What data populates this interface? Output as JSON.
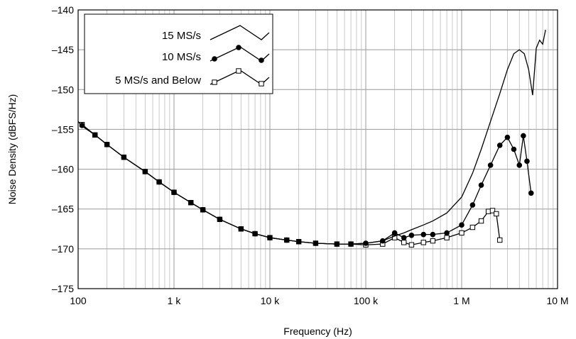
{
  "chart_data": {
    "type": "line",
    "xlabel": "Frequency (Hz)",
    "ylabel": "Noise Density (dBFS/Hz)",
    "x_scale": "log",
    "xlim": [
      100,
      10000000
    ],
    "ylim": [
      -175,
      -140
    ],
    "x_ticks": [
      {
        "value": 100,
        "label": "100"
      },
      {
        "value": 1000,
        "label": "1 k"
      },
      {
        "value": 10000,
        "label": "10 k"
      },
      {
        "value": 100000,
        "label": "100 k"
      },
      {
        "value": 1000000,
        "label": "1 M"
      },
      {
        "value": 10000000,
        "label": "10 M"
      }
    ],
    "y_ticks": [
      {
        "value": -140,
        "label": "–140"
      },
      {
        "value": -145,
        "label": "–145"
      },
      {
        "value": -150,
        "label": "–150"
      },
      {
        "value": -155,
        "label": "–155"
      },
      {
        "value": -160,
        "label": "–160"
      },
      {
        "value": -165,
        "label": "–165"
      },
      {
        "value": -170,
        "label": "–170"
      },
      {
        "value": -175,
        "label": "–175"
      }
    ],
    "grid": true,
    "legend_position": "top-left",
    "series": [
      {
        "name": "15 MS/s",
        "marker": "none",
        "x": [
          100,
          110,
          150,
          200,
          300,
          500,
          700,
          1000,
          1500,
          2000,
          3000,
          5000,
          7000,
          10000,
          15000,
          20000,
          30000,
          50000,
          70000,
          100000,
          150000,
          200000,
          250000,
          300000,
          400000,
          500000,
          700000,
          1000000,
          1300000,
          1600000,
          2000000,
          2500000,
          3000000,
          3500000,
          4000000,
          4500000,
          5000000,
          5500000,
          6000000,
          6500000,
          7000000,
          7500000
        ],
        "y": [
          -154,
          -154.6,
          -155.7,
          -156.9,
          -158.5,
          -160.3,
          -161.6,
          -162.9,
          -164.2,
          -165.1,
          -166.3,
          -167.5,
          -168.1,
          -168.6,
          -168.9,
          -169.1,
          -169.3,
          -169.4,
          -169.4,
          -169.3,
          -169.0,
          -168.4,
          -168.0,
          -167.6,
          -167.0,
          -166.5,
          -165.5,
          -163.5,
          -160.5,
          -157.5,
          -154,
          -150.5,
          -147.5,
          -145.5,
          -145,
          -145.5,
          -147.5,
          -150.7,
          -144.8,
          -143.8,
          -144.3,
          -142.5
        ]
      },
      {
        "name": "10 MS/s",
        "marker": "filled-circle",
        "x": [
          110,
          150,
          200,
          300,
          500,
          700,
          1000,
          1500,
          2000,
          3000,
          5000,
          7000,
          10000,
          15000,
          20000,
          30000,
          50000,
          70000,
          100000,
          150000,
          200000,
          250000,
          300000,
          400000,
          500000,
          700000,
          1000000,
          1300000,
          1600000,
          2000000,
          2500000,
          3000000,
          3500000,
          4000000,
          4400000,
          4800000,
          5300000
        ],
        "y": [
          -154.5,
          -155.7,
          -156.9,
          -158.5,
          -160.3,
          -161.6,
          -162.9,
          -164.2,
          -165.1,
          -166.3,
          -167.5,
          -168.1,
          -168.6,
          -168.9,
          -169.1,
          -169.3,
          -169.4,
          -169.4,
          -169.3,
          -169.0,
          -168.0,
          -168.6,
          -168.3,
          -168.2,
          -168.2,
          -168.0,
          -167.0,
          -164.5,
          -162.0,
          -159.5,
          -157.0,
          -156.0,
          -157.5,
          -159.5,
          -155.8,
          -159.0,
          -163.0
        ]
      },
      {
        "name": "5 MS/s and Below",
        "marker": "open-square",
        "x": [
          110,
          150,
          200,
          300,
          500,
          700,
          1000,
          1500,
          2000,
          3000,
          5000,
          7000,
          10000,
          15000,
          20000,
          30000,
          50000,
          70000,
          100000,
          150000,
          200000,
          250000,
          300000,
          400000,
          500000,
          700000,
          1000000,
          1300000,
          1600000,
          1900000,
          2100000,
          2300000,
          2500000
        ],
        "y": [
          -154.4,
          -155.7,
          -156.9,
          -158.5,
          -160.3,
          -161.6,
          -162.9,
          -164.2,
          -165.1,
          -166.3,
          -167.5,
          -168.1,
          -168.6,
          -168.9,
          -169.1,
          -169.3,
          -169.4,
          -169.4,
          -169.5,
          -169.4,
          -168.6,
          -169.2,
          -169.5,
          -169.2,
          -169.0,
          -168.6,
          -168.0,
          -167.3,
          -166.5,
          -165.3,
          -165.2,
          -165.6,
          -168.9
        ]
      }
    ]
  }
}
